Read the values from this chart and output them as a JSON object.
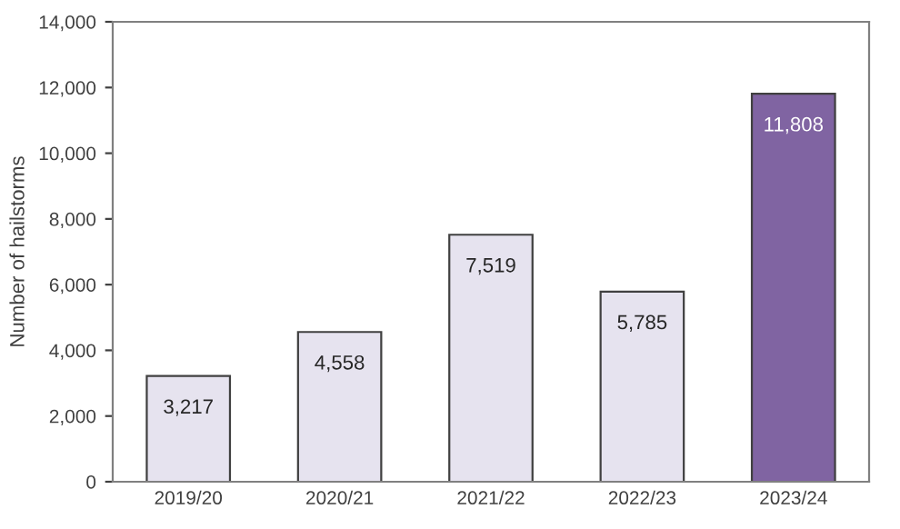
{
  "chart_data": {
    "type": "bar",
    "ylabel": "Number of hailstorms",
    "categories": [
      "2019/20",
      "2020/21",
      "2021/22",
      "2022/23",
      "2023/24"
    ],
    "values": [
      3217,
      4558,
      7519,
      5785,
      11808
    ],
    "colors": [
      "#e6e3ef",
      "#e6e3ef",
      "#e6e3ef",
      "#e6e3ef",
      "#8064a2"
    ],
    "value_labels": [
      "3,217",
      "4,558",
      "7,519",
      "5,785",
      "11,808"
    ],
    "ylim": [
      0,
      14000
    ],
    "yticks": [
      {
        "value": 0,
        "label": "0"
      },
      {
        "value": 2000,
        "label": "2,000"
      },
      {
        "value": 4000,
        "label": "4,000"
      },
      {
        "value": 6000,
        "label": "6,000"
      },
      {
        "value": 8000,
        "label": "8,000"
      },
      {
        "value": 10000,
        "label": "10,000"
      },
      {
        "value": 12000,
        "label": "12,000"
      },
      {
        "value": 14000,
        "label": "14,000"
      }
    ],
    "grid": false,
    "legend": false
  }
}
